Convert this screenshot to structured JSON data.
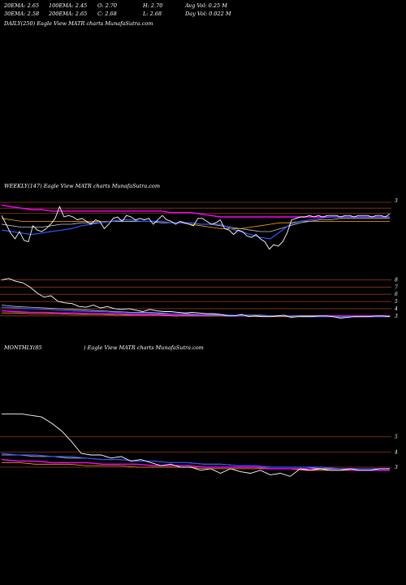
{
  "header": {
    "row1": [
      {
        "label": "20EMA: 2.65"
      },
      {
        "label": "100EMA: 2.45"
      },
      {
        "label": "O: 2.70"
      },
      {
        "label": "H: 2.70"
      },
      {
        "label": "Avg Vol: 0.25  M"
      }
    ],
    "row2": [
      {
        "label": "30EMA: 2.58"
      },
      {
        "label": "200EMA: 2.65"
      },
      {
        "label": "C: 2.68"
      },
      {
        "label": "L: 2.68"
      },
      {
        "label": "Day Vol: 0.022  M"
      }
    ]
  },
  "daily_title": "DAILY(250) Eagle  View  MATR charts MunafaSutra.com",
  "weekly_title": "WEEKLY(147) Eagle  View  MATR charts MunafaSutra.com",
  "monthly_title_left": "MONTHLY(85",
  "monthly_title_right": ") Eagle  View  MATR charts MunafaSutra.com",
  "colors": {
    "background": "#000000",
    "price": "#ffffff",
    "ema_short": "#3355ff",
    "ema_mid": "#c8c8c8",
    "ema_long": "#ff00ff",
    "ema_alt": "#ffa500",
    "grid": "#8b3a1a"
  },
  "chart_data": [
    {
      "type": "line",
      "title": "WEEKLY(147) Eagle  View  MATR charts MunafaSutra.com",
      "ylabels": [
        "3"
      ],
      "price": [
        2.6,
        2.0,
        1.4,
        1.0,
        1.5,
        0.9,
        0.8,
        1.9,
        1.6,
        1.5,
        1.7,
        2.0,
        2.4,
        3.2,
        2.5,
        2.6,
        2.5,
        2.3,
        2.4,
        2.2,
        2.0,
        2.3,
        2.2,
        1.7,
        2.0,
        2.4,
        2.5,
        2.2,
        2.6,
        2.5,
        2.3,
        2.4,
        2.3,
        2.4,
        2.0,
        2.3,
        2.6,
        2.3,
        2.2,
        2.0,
        2.2,
        2.1,
        2.0,
        1.9,
        2.4,
        2.4,
        2.2,
        2.0,
        2.1,
        2.3,
        1.7,
        1.6,
        1.3,
        1.6,
        1.5,
        1.2,
        1.1,
        1.3,
        1.0,
        0.8,
        0.3,
        0.6,
        0.5,
        0.8,
        1.4,
        2.3,
        2.4,
        2.5,
        2.5,
        2.6,
        2.5,
        2.6,
        2.5,
        2.6,
        2.6,
        2.6,
        2.5,
        2.6,
        2.6,
        2.5,
        2.6,
        2.6,
        2.6,
        2.5,
        2.6,
        2.6,
        2.5,
        2.7
      ],
      "ema_short": [
        1.6,
        1.5,
        1.4,
        1.3,
        1.4,
        1.5,
        1.6,
        1.7,
        1.9,
        2.0,
        2.1,
        2.2,
        2.3,
        2.3,
        2.2,
        2.2,
        2.2,
        2.1,
        2.1,
        2.1,
        2.0,
        2.0,
        2.0,
        1.7,
        1.5,
        1.3,
        1.1,
        1.0,
        1.5,
        2.0,
        2.2,
        2.3,
        2.4,
        2.5,
        2.5,
        2.5,
        2.5,
        2.5,
        2.5,
        2.5
      ],
      "ema_mid": [
        2.0,
        1.9,
        1.8,
        1.8,
        1.8,
        1.9,
        2.0,
        2.0,
        2.1,
        2.1,
        2.1,
        2.2,
        2.2,
        2.2,
        2.2,
        2.2,
        2.1,
        2.1,
        2.1,
        2.1,
        2.0,
        2.0,
        1.9,
        1.8,
        1.7,
        1.6,
        1.5,
        1.5,
        1.7,
        1.9,
        2.1,
        2.2,
        2.3,
        2.3,
        2.4,
        2.4,
        2.4,
        2.4,
        2.4,
        2.4
      ],
      "ema_long": [
        3.3,
        3.2,
        3.1,
        3.0,
        3.0,
        2.9,
        2.9,
        2.9,
        2.9,
        2.9,
        2.9,
        2.9,
        2.9,
        2.9,
        2.9,
        2.9,
        2.9,
        2.8,
        2.8,
        2.8,
        2.7,
        2.6,
        2.5,
        2.5,
        2.5,
        2.5,
        2.5,
        2.5,
        2.5,
        2.5,
        2.5,
        2.5,
        2.5,
        2.5,
        2.5,
        2.5,
        2.5,
        2.5,
        2.5,
        2.5
      ],
      "ema_alt": [
        2.4,
        2.3,
        2.2,
        2.2,
        2.2,
        2.2,
        2.2,
        2.2,
        2.2,
        2.2,
        2.2,
        2.2,
        2.2,
        2.2,
        2.2,
        2.2,
        2.2,
        2.1,
        2.1,
        2.0,
        1.9,
        1.8,
        1.7,
        1.7,
        1.7,
        1.8,
        1.9,
        2.0,
        2.1,
        2.1,
        2.2,
        2.2,
        2.2,
        2.2,
        2.2,
        2.2,
        2.2,
        2.2,
        2.2,
        2.2
      ]
    },
    {
      "type": "line",
      "title": "",
      "ylabels": [
        "8",
        "7",
        "6",
        "5",
        "4",
        "3"
      ],
      "price": [
        8.0,
        8.2,
        7.8,
        7.6,
        7.0,
        6.2,
        5.6,
        5.8,
        5.0,
        4.8,
        4.7,
        4.3,
        4.2,
        4.5,
        4.1,
        4.3,
        4.0,
        3.9,
        4.0,
        3.8,
        3.6,
        3.9,
        3.7,
        3.6,
        3.6,
        3.5,
        3.4,
        3.5,
        3.4,
        3.3,
        3.3,
        3.2,
        3.0,
        3.0,
        3.2,
        2.9,
        3.0,
        2.9,
        2.9,
        3.0,
        3.1,
        2.8,
        2.9,
        2.9,
        2.9,
        3.0,
        3.0,
        2.9,
        2.7,
        2.8,
        2.9,
        2.9,
        2.9,
        3.0,
        3.0,
        2.9
      ],
      "ema_short": [
        4.2,
        4.1,
        4.0,
        3.9,
        3.8,
        3.7,
        3.6,
        3.6,
        3.5,
        3.4,
        3.4,
        3.3,
        3.3,
        3.2,
        3.2,
        3.1,
        3.1,
        3.0,
        3.0,
        3.0,
        3.0,
        2.9,
        2.9,
        2.9,
        2.9,
        2.9,
        2.9,
        2.9
      ],
      "ema_mid": [
        4.5,
        4.3,
        4.2,
        4.1,
        4.0,
        3.9,
        3.8,
        3.7,
        3.6,
        3.5,
        3.5,
        3.4,
        3.3,
        3.3,
        3.2,
        3.2,
        3.1,
        3.1,
        3.1,
        3.0,
        3.0,
        3.0,
        3.0,
        2.9,
        2.9,
        2.9,
        2.9,
        2.9
      ],
      "ema_long": [
        3.7,
        3.6,
        3.5,
        3.5,
        3.4,
        3.4,
        3.3,
        3.3,
        3.3,
        3.2,
        3.2,
        3.2,
        3.1,
        3.1,
        3.1,
        3.1,
        3.0,
        3.0,
        3.0,
        3.0,
        3.0,
        3.0,
        3.0,
        3.0,
        3.0,
        3.0,
        3.0,
        3.0
      ],
      "ema_alt": [
        3.4,
        3.4,
        3.3,
        3.3,
        3.3,
        3.2,
        3.2,
        3.2,
        3.1,
        3.1,
        3.1,
        3.1,
        3.0,
        3.0,
        3.0,
        3.0,
        3.0,
        3.0,
        2.9,
        2.9,
        2.9,
        2.9,
        2.9,
        2.9,
        2.9,
        2.9,
        2.9,
        2.9
      ]
    },
    {
      "type": "line",
      "title": "MONTHLY(85 ) Eagle  View  MATR charts MunafaSutra.com",
      "ylabels": [
        "5",
        "4",
        "3"
      ],
      "price": [
        6.5,
        6.5,
        6.5,
        6.4,
        6.3,
        5.9,
        5.4,
        4.7,
        3.9,
        3.8,
        3.8,
        3.6,
        3.7,
        3.4,
        3.5,
        3.3,
        3.1,
        3.2,
        3.0,
        3.0,
        2.8,
        2.9,
        2.6,
        2.9,
        2.7,
        2.6,
        2.8,
        2.5,
        2.6,
        2.4,
        2.9,
        2.8,
        2.9,
        2.8,
        2.8,
        2.9,
        2.8,
        2.8,
        2.9,
        2.9
      ],
      "ema_short": [
        3.9,
        3.8,
        3.8,
        3.7,
        3.7,
        3.6,
        3.5,
        3.5,
        3.4,
        3.4,
        3.3,
        3.3,
        3.2,
        3.2,
        3.1,
        3.1,
        3.0,
        3.0,
        3.0,
        3.0,
        2.9,
        2.9,
        2.9,
        2.9
      ],
      "ema_mid": [
        3.8,
        3.8,
        3.7,
        3.7,
        3.6,
        3.6,
        3.5,
        3.5,
        3.4,
        3.4,
        3.3,
        3.3,
        3.2,
        3.2,
        3.1,
        3.1,
        3.0,
        3.0,
        3.0,
        2.9,
        2.9,
        2.9,
        2.9,
        2.9
      ],
      "ema_long": [
        3.5,
        3.4,
        3.4,
        3.3,
        3.3,
        3.3,
        3.2,
        3.2,
        3.2,
        3.1,
        3.1,
        3.1,
        3.0,
        3.0,
        3.0,
        3.0,
        2.9,
        2.9,
        2.9,
        2.9,
        2.9,
        2.8,
        2.8,
        2.8
      ],
      "ema_alt": [
        3.3,
        3.3,
        3.2,
        3.2,
        3.2,
        3.1,
        3.1,
        3.1,
        3.0,
        3.0,
        3.0,
        3.0,
        2.9,
        2.9,
        2.9,
        2.9,
        2.9,
        2.9,
        2.8,
        2.8,
        2.8,
        2.8,
        2.8,
        2.8
      ]
    }
  ]
}
